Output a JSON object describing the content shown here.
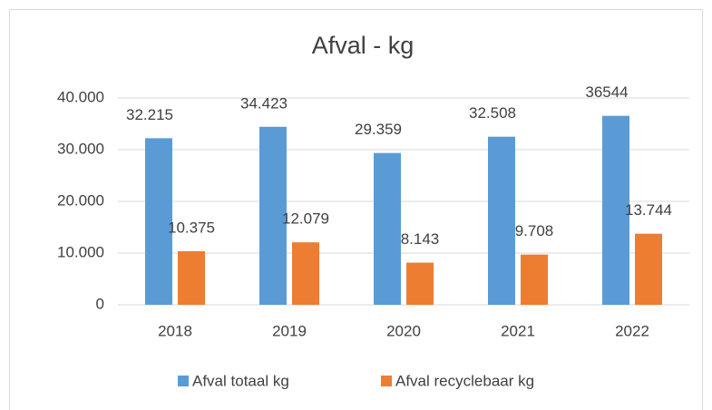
{
  "chart_data": {
    "type": "bar",
    "title": "Afval - kg",
    "categories": [
      "2018",
      "2019",
      "2020",
      "2021",
      "2022"
    ],
    "series": [
      {
        "name": "Afval totaal kg",
        "color": "#5b9bd5",
        "values": [
          32215,
          34423,
          29359,
          32508,
          36544
        ],
        "value_labels": [
          "32.215",
          "34.423",
          "29.359",
          "32.508",
          "36544"
        ]
      },
      {
        "name": "Afval recyclebaar kg",
        "color": "#ed7d31",
        "values": [
          10375,
          12079,
          8143,
          9708,
          13744
        ],
        "value_labels": [
          "10.375",
          "12.079",
          "8.143",
          "9.708",
          "13.744"
        ]
      }
    ],
    "ylim": [
      0,
      40000
    ],
    "yticks": [
      0,
      {
        "value": 10000,
        "label": "10.000"
      },
      {
        "value": 20000,
        "label": "20.000"
      },
      {
        "value": 30000,
        "label": "30.000"
      },
      {
        "value": 40000,
        "label": "40.000"
      }
    ],
    "grid": true,
    "legend": "bottom"
  }
}
